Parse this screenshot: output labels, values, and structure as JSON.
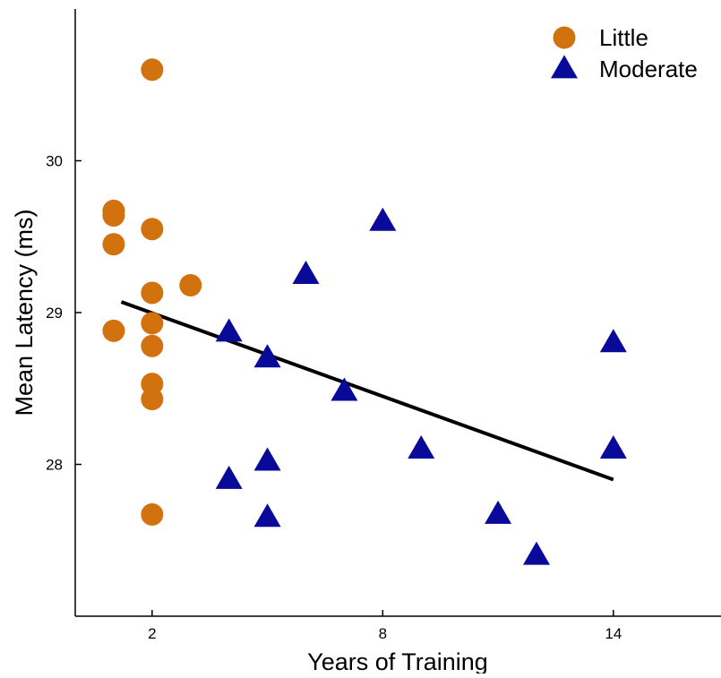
{
  "chart_data": {
    "type": "scatter",
    "title": "",
    "xlabel": "Years of Training",
    "ylabel": "Mean Latency (ms)",
    "xlim": [
      0,
      16.8
    ],
    "ylim": [
      27.0,
      31.0
    ],
    "xticks": [
      2,
      8,
      14
    ],
    "yticks": [
      28,
      29,
      30
    ],
    "grid": false,
    "legend_position": "top-right",
    "series": [
      {
        "name": "Little",
        "marker": "circle",
        "color": "#D2720F",
        "points": [
          {
            "x": 2,
            "y": 30.6
          },
          {
            "x": 1,
            "y": 29.67
          },
          {
            "x": 1,
            "y": 29.64
          },
          {
            "x": 1,
            "y": 29.45
          },
          {
            "x": 2,
            "y": 29.55
          },
          {
            "x": 3,
            "y": 29.18
          },
          {
            "x": 2,
            "y": 29.13
          },
          {
            "x": 2,
            "y": 28.93
          },
          {
            "x": 1,
            "y": 28.88
          },
          {
            "x": 2,
            "y": 28.78
          },
          {
            "x": 2,
            "y": 28.53
          },
          {
            "x": 2,
            "y": 28.43
          },
          {
            "x": 2,
            "y": 27.67
          }
        ]
      },
      {
        "name": "Moderate",
        "marker": "triangle",
        "color": "#0A0A9A",
        "points": [
          {
            "x": 8,
            "y": 29.6
          },
          {
            "x": 6,
            "y": 29.25
          },
          {
            "x": 4,
            "y": 28.87
          },
          {
            "x": 5,
            "y": 28.7
          },
          {
            "x": 7,
            "y": 28.48
          },
          {
            "x": 14,
            "y": 28.8
          },
          {
            "x": 9,
            "y": 28.1
          },
          {
            "x": 14,
            "y": 28.1
          },
          {
            "x": 5,
            "y": 28.02
          },
          {
            "x": 4,
            "y": 27.9
          },
          {
            "x": 5,
            "y": 27.65
          },
          {
            "x": 11,
            "y": 27.67
          },
          {
            "x": 12,
            "y": 27.4
          }
        ]
      }
    ],
    "trendline": {
      "color": "#000000",
      "points": [
        {
          "x": 1.2,
          "y": 29.07
        },
        {
          "x": 14,
          "y": 27.9
        }
      ]
    }
  }
}
